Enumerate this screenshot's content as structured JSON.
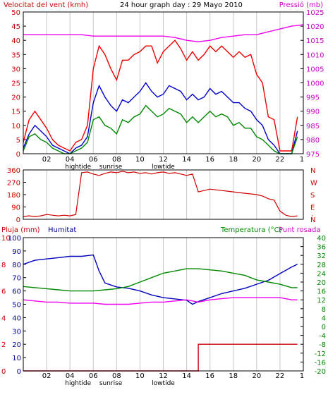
{
  "header": {
    "left_title": "Velocitat del vent (kmh)",
    "center_title": "24 hour graph day : 29 Mayo 2010",
    "right_title": "Pressió (mb)"
  },
  "colors": {
    "gust": "#ee0000",
    "wind": "#0000cc",
    "avg_wind": "#008800",
    "pressure": "#ee00ee",
    "direction": "#cc0000",
    "humidity": "#0000bb",
    "temperature": "#008800",
    "dewpoint": "#ee00ee",
    "rain": "#cc0000",
    "axis_red": "#cc0000",
    "axis_magenta": "#cc00cc",
    "axis_blue": "#000099",
    "axis_green": "#008800",
    "frame": "#000000",
    "grid": "#c8c8c8"
  },
  "x_axis": {
    "hour_labels": [
      "02",
      "04",
      "06",
      "08",
      "10",
      "12",
      "14",
      "16",
      "18",
      "20",
      "22"
    ],
    "end_marker": "1",
    "tide_labels": {
      "hightide": "hightide",
      "sunrise": "sunrise",
      "lowtide": "lowtide"
    }
  },
  "wind_panel": {
    "left_ticks": [
      "0",
      "5",
      "10",
      "15",
      "20",
      "25",
      "30",
      "35",
      "40",
      "45",
      "50"
    ],
    "right_ticks": [
      "975",
      "980",
      "985",
      "990",
      "995",
      "1000",
      "1005",
      "1010",
      "1015",
      "1020",
      "1025"
    ]
  },
  "direction_panel": {
    "left_ticks": [
      "0",
      "90",
      "180",
      "270",
      "360"
    ],
    "right_ticks": [
      "N",
      "E",
      "S",
      "W",
      "N"
    ],
    "compass_dot": "."
  },
  "bottom_panel": {
    "header_left": "Pluja (mm)",
    "header_mid": "Humitat",
    "header_right": "Temperatura (°C)",
    "header_right2": "Punt rosada",
    "rain_ticks": [
      "0",
      "2",
      "4",
      "6",
      "8",
      "10"
    ],
    "hum_ticks": [
      "0",
      "10",
      "20",
      "30",
      "40",
      "50",
      "60",
      "70",
      "80",
      "90",
      "100"
    ],
    "temp_ticks": [
      "-20",
      "-16",
      "-12",
      "-8",
      "-4",
      "0",
      "4",
      "8",
      "12",
      "16",
      "20",
      "24",
      "28",
      "32",
      "36",
      "40"
    ]
  },
  "chart_data": [
    {
      "type": "line",
      "title": "24 hour graph day : 29 Mayo 2010",
      "ylabel": "Velocitat del vent (kmh)",
      "y2label": "Pressió (mb)",
      "xlabel": "",
      "x_unit": "hour",
      "ylim": [
        0,
        50
      ],
      "y2lim": [
        975,
        1025
      ],
      "grid": true,
      "series": [
        {
          "name": "",
          "role": "gust",
          "color": "#ee0000",
          "x": [
            0,
            0.5,
            1,
            1.5,
            2,
            2.5,
            3,
            3.5,
            4,
            4.5,
            5,
            5.5,
            6,
            6.5,
            7,
            7.5,
            8,
            8.5,
            9,
            9.5,
            10,
            10.5,
            11,
            11.5,
            12,
            12.5,
            13,
            13.5,
            14,
            14.5,
            15,
            15.5,
            16,
            16.5,
            17,
            17.5,
            18,
            18.5,
            19,
            19.5,
            20,
            20.5,
            21,
            21.5,
            22,
            22.5,
            23,
            23.5
          ],
          "y": [
            4,
            12,
            15,
            12,
            9,
            5,
            3,
            2,
            1,
            4,
            5,
            10,
            30,
            38,
            35,
            30,
            26,
            33,
            33,
            35,
            36,
            38,
            38,
            32,
            36,
            38,
            40,
            37,
            33,
            36,
            33,
            35,
            38,
            36,
            38,
            36,
            34,
            36,
            34,
            35,
            28,
            25,
            13,
            12,
            1,
            1,
            1,
            13
          ]
        },
        {
          "name": "",
          "role": "wind",
          "color": "#0000cc",
          "x": [
            0,
            0.5,
            1,
            1.5,
            2,
            2.5,
            3,
            3.5,
            4,
            4.5,
            5,
            5.5,
            6,
            6.5,
            7,
            7.5,
            8,
            8.5,
            9,
            9.5,
            10,
            10.5,
            11,
            11.5,
            12,
            12.5,
            13,
            13.5,
            14,
            14.5,
            15,
            15.5,
            16,
            16.5,
            17,
            17.5,
            18,
            18.5,
            19,
            19.5,
            20,
            20.5,
            21,
            21.5,
            22,
            22.5,
            23,
            23.5
          ],
          "y": [
            2,
            7,
            10,
            8,
            6,
            3,
            2,
            1,
            0,
            2,
            3,
            6,
            18,
            24,
            20,
            17,
            15,
            19,
            18,
            20,
            22,
            25,
            22,
            20,
            21,
            24,
            23,
            22,
            19,
            21,
            19,
            20,
            23,
            21,
            22,
            20,
            18,
            18,
            16,
            15,
            12,
            10,
            5,
            3,
            0,
            0,
            0,
            8
          ]
        },
        {
          "name": "",
          "role": "avg_wind",
          "color": "#008800",
          "x": [
            0,
            0.5,
            1,
            1.5,
            2,
            2.5,
            3,
            3.5,
            4,
            4.5,
            5,
            5.5,
            6,
            6.5,
            7,
            7.5,
            8,
            8.5,
            9,
            9.5,
            10,
            10.5,
            11,
            11.5,
            12,
            12.5,
            13,
            13.5,
            14,
            14.5,
            15,
            15.5,
            16,
            16.5,
            17,
            17.5,
            18,
            18.5,
            19,
            19.5,
            20,
            20.5,
            21,
            21.5,
            22,
            22.5,
            23,
            23.5
          ],
          "y": [
            1,
            6,
            7,
            5,
            4,
            2,
            1,
            0,
            0,
            1,
            2,
            4,
            12,
            13,
            10,
            9,
            7,
            12,
            11,
            13,
            14,
            17,
            15,
            13,
            14,
            16,
            15,
            14,
            11,
            13,
            11,
            13,
            15,
            13,
            14,
            13,
            10,
            11,
            9,
            9,
            6,
            5,
            3,
            1,
            0,
            0,
            0,
            6
          ]
        },
        {
          "name": "",
          "role": "pressure",
          "color": "#ee00ee",
          "axis": "right",
          "x": [
            0,
            1,
            2,
            3,
            4,
            5,
            6,
            7,
            8,
            9,
            10,
            11,
            12,
            13,
            14,
            15,
            16,
            17,
            18,
            19,
            20,
            21,
            22,
            23,
            24
          ],
          "y": [
            1017,
            1017,
            1017,
            1017,
            1017,
            1017,
            1016.5,
            1016.5,
            1016.5,
            1016.5,
            1016.5,
            1016.5,
            1016.5,
            1016,
            1015,
            1014.5,
            1015,
            1016,
            1016.5,
            1017,
            1017,
            1018,
            1019,
            1020,
            1020.5
          ]
        }
      ]
    },
    {
      "type": "scatter",
      "ylabel": "",
      "ylim": [
        0,
        360
      ],
      "x_unit": "hour",
      "series": [
        {
          "name": "",
          "role": "direction",
          "color": "#cc0000",
          "x": [
            0,
            0.5,
            1,
            1.5,
            2,
            2.5,
            3,
            3.5,
            4,
            4.5,
            5,
            5.5,
            6,
            6.5,
            7,
            7.5,
            8,
            8.5,
            9,
            9.5,
            10,
            10.5,
            11,
            11.5,
            12,
            12.5,
            13,
            13.5,
            14,
            14.5,
            15,
            15.5,
            16,
            16.5,
            17,
            17.5,
            18,
            18.5,
            19,
            19.5,
            20,
            20.5,
            21,
            21.5,
            22,
            22.5,
            23,
            23.5
          ],
          "y": [
            20,
            25,
            20,
            25,
            35,
            30,
            25,
            30,
            25,
            35,
            340,
            345,
            330,
            320,
            335,
            345,
            340,
            350,
            340,
            345,
            335,
            340,
            330,
            340,
            345,
            335,
            340,
            330,
            320,
            330,
            200,
            210,
            220,
            215,
            210,
            205,
            200,
            195,
            190,
            185,
            180,
            170,
            150,
            140,
            60,
            30,
            20,
            25
          ]
        }
      ]
    },
    {
      "type": "line",
      "ylabel": "Humitat",
      "y2label": "Temperatura (°C)",
      "y3label": "Pluja (mm)",
      "ylim": [
        0,
        100
      ],
      "y2lim": [
        -20,
        40
      ],
      "y3lim": [
        0,
        10
      ],
      "x_unit": "hour",
      "grid": true,
      "series": [
        {
          "name": "Humitat",
          "role": "humidity",
          "color": "#0000bb",
          "x": [
            0,
            1,
            2,
            3,
            4,
            5,
            6,
            6.5,
            7,
            8,
            9,
            10,
            11,
            12,
            13,
            14,
            14.5,
            15,
            16,
            17,
            18,
            19,
            20,
            21,
            22,
            23,
            23.5
          ],
          "y": [
            80,
            83,
            84,
            85,
            86,
            86,
            87,
            75,
            66,
            63,
            62,
            60,
            57,
            55,
            54,
            53,
            50,
            52,
            55,
            58,
            60,
            62,
            65,
            68,
            73,
            78,
            80
          ]
        },
        {
          "name": "Temperatura (°C)",
          "role": "temperature",
          "color": "#008800",
          "axis": "right",
          "x": [
            0,
            1,
            2,
            3,
            4,
            5,
            6,
            7,
            8,
            9,
            10,
            11,
            12,
            13,
            14,
            15,
            16,
            17,
            18,
            19,
            20,
            21,
            22,
            23,
            23.5
          ],
          "y": [
            18,
            17.5,
            17,
            16.5,
            16,
            16,
            16,
            16.5,
            17,
            18,
            20,
            22,
            24,
            25,
            26,
            26,
            25.5,
            25,
            24,
            23,
            21,
            20,
            19,
            17.5,
            17.5
          ]
        },
        {
          "name": "Punt rosada",
          "role": "dewpoint",
          "color": "#ee00ee",
          "axis": "right",
          "x": [
            0,
            1,
            2,
            3,
            4,
            5,
            6,
            7,
            8,
            9,
            10,
            11,
            12,
            13,
            14,
            15,
            16,
            17,
            18,
            19,
            20,
            21,
            22,
            23,
            23.5
          ],
          "y": [
            12,
            11.5,
            11,
            11,
            10.5,
            10.5,
            10.5,
            10,
            10,
            10,
            10.5,
            11,
            11,
            11.5,
            12,
            11,
            12,
            12.5,
            13,
            13,
            13,
            13,
            13,
            12,
            12
          ]
        },
        {
          "name": "Pluja (mm)",
          "role": "rain",
          "color": "#cc0000",
          "axis": "rain",
          "x": [
            0,
            15,
            15,
            23.5
          ],
          "y": [
            0,
            0,
            2,
            2
          ]
        }
      ]
    }
  ]
}
